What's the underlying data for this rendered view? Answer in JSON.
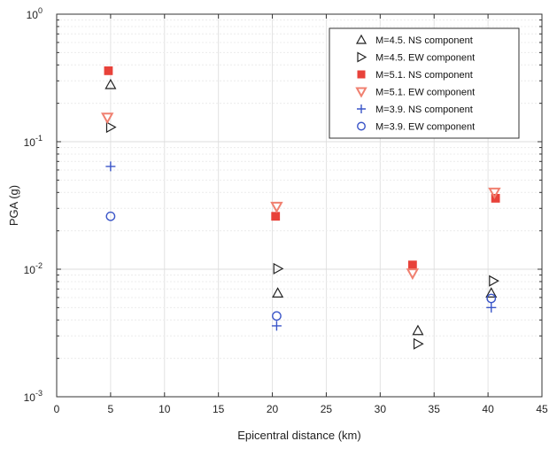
{
  "chart_data": {
    "type": "scatter",
    "title": "",
    "xlabel": "Epicentral distance (km)",
    "ylabel": "PGA (g)",
    "xlim": [
      0,
      45
    ],
    "ylim": [
      0.001,
      1
    ],
    "yscale": "log",
    "grid": true,
    "legend_position": "top-right",
    "x_ticks": [
      "0",
      "5",
      "10",
      "15",
      "20",
      "25",
      "30",
      "35",
      "40",
      "45"
    ],
    "y_ticks": [
      {
        "base": "10",
        "exp": "-3"
      },
      {
        "base": "10",
        "exp": "-2"
      },
      {
        "base": "10",
        "exp": "-1"
      },
      {
        "base": "10",
        "exp": "0"
      }
    ],
    "series": [
      {
        "name": "M=4.5. NS component",
        "marker": "triangle-up",
        "color": "#222222",
        "points": [
          [
            5,
            0.28
          ],
          [
            20.5,
            0.0065
          ],
          [
            33.5,
            0.0033
          ],
          [
            40.3,
            0.0065
          ]
        ]
      },
      {
        "name": "M=4.5. EW component",
        "marker": "triangle-right",
        "color": "#222222",
        "points": [
          [
            5,
            0.13
          ],
          [
            20.5,
            0.0101
          ],
          [
            33.5,
            0.0026
          ],
          [
            40.5,
            0.0081
          ]
        ]
      },
      {
        "name": "M=5.1. NS component",
        "marker": "square",
        "color": "#e8423a",
        "points": [
          [
            4.8,
            0.36
          ],
          [
            20.3,
            0.026
          ],
          [
            33,
            0.0108
          ],
          [
            40.7,
            0.036
          ]
        ]
      },
      {
        "name": "M=5.1. EW component",
        "marker": "triangle-down",
        "color": "#f08070",
        "points": [
          [
            4.7,
            0.155
          ],
          [
            20.4,
            0.031
          ],
          [
            33,
            0.0093
          ],
          [
            40.6,
            0.04
          ]
        ]
      },
      {
        "name": "M=3.9. NS component",
        "marker": "plus",
        "color": "#3a55c8",
        "points": [
          [
            5,
            0.064
          ],
          [
            20.4,
            0.0036
          ],
          [
            40.3,
            0.005
          ]
        ]
      },
      {
        "name": "M=3.9. EW component",
        "marker": "circle",
        "color": "#3a55c8",
        "points": [
          [
            5,
            0.026
          ],
          [
            20.4,
            0.0043
          ],
          [
            40.3,
            0.0059
          ]
        ]
      }
    ]
  }
}
